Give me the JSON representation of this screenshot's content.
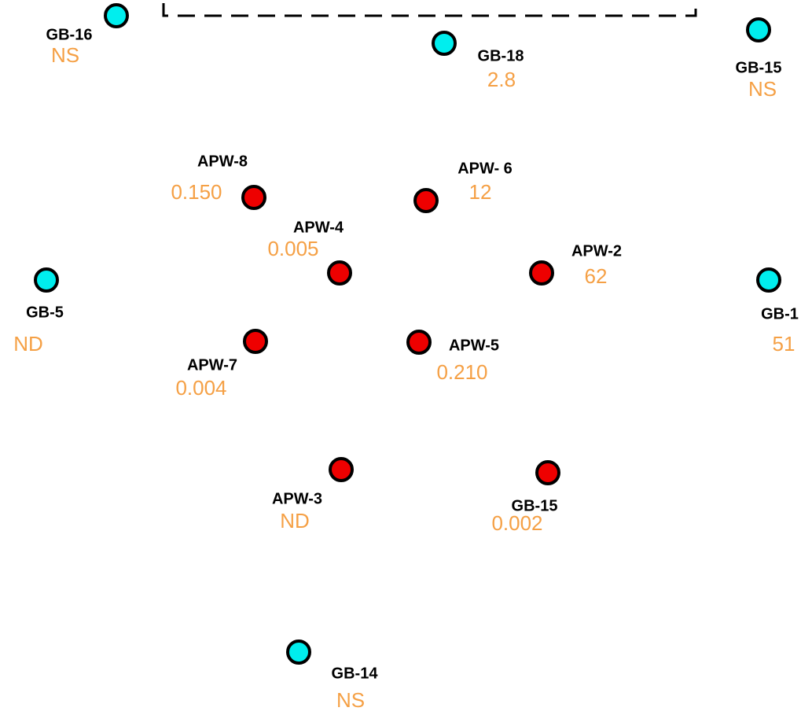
{
  "wells": [
    {
      "label": "GB-16",
      "value": "NS",
      "color": "#00eeee"
    },
    {
      "label": "GB-18",
      "value": "2.8",
      "color": "#00eeee"
    },
    {
      "label": "GB-15",
      "value": "NS",
      "color": "#00eeee"
    },
    {
      "label": "APW-8",
      "value": "0.150",
      "color": "#ee0000"
    },
    {
      "label": "APW- 6",
      "value": "12",
      "color": "#ee0000"
    },
    {
      "label": "APW-4",
      "value": "0.005",
      "color": "#ee0000"
    },
    {
      "label": "APW-2",
      "value": "62",
      "color": "#ee0000"
    },
    {
      "label": "GB-5",
      "value": "ND",
      "color": "#00eeee"
    },
    {
      "label": "GB-1",
      "value": "51",
      "color": "#00eeee"
    },
    {
      "label": "APW-7",
      "value": "0.004",
      "color": "#ee0000"
    },
    {
      "label": "APW-5",
      "value": "0.210",
      "color": "#ee0000"
    },
    {
      "label": "APW-3",
      "value": "ND",
      "color": "#ee0000"
    },
    {
      "label": "GB-15",
      "value": "0.002",
      "color": "#ee0000"
    },
    {
      "label": "GB-14",
      "value": "NS",
      "color": "#00eeee"
    }
  ]
}
